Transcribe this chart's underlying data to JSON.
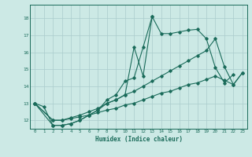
{
  "xlabel": "Humidex (Indice chaleur)",
  "bg_color": "#cce9e5",
  "grid_color": "#aacccc",
  "line_color": "#1a6b5a",
  "xlim": [
    -0.5,
    23.5
  ],
  "ylim": [
    11.5,
    18.8
  ],
  "yticks": [
    12,
    13,
    14,
    15,
    16,
    17,
    18
  ],
  "xticks": [
    0,
    1,
    2,
    3,
    4,
    5,
    6,
    7,
    8,
    9,
    10,
    11,
    12,
    13,
    14,
    15,
    16,
    17,
    18,
    19,
    20,
    21,
    22,
    23
  ],
  "series1_x": [
    0,
    1,
    2,
    3,
    4,
    5,
    6,
    7,
    8,
    9,
    10,
    11,
    12,
    13,
    14,
    15,
    16,
    17,
    18,
    19,
    20,
    21,
    22
  ],
  "series1_y": [
    13.0,
    12.8,
    11.7,
    11.7,
    11.8,
    12.0,
    12.3,
    12.6,
    13.0,
    13.2,
    13.5,
    16.3,
    14.6,
    18.1,
    17.1,
    17.1,
    17.2,
    17.3,
    17.35,
    16.8,
    15.1,
    14.2,
    14.7
  ],
  "series2_x": [
    0,
    2,
    3,
    4,
    5,
    6,
    7,
    8,
    9,
    10,
    11,
    12,
    13
  ],
  "series2_y": [
    13.0,
    11.7,
    11.7,
    11.8,
    12.0,
    12.3,
    12.6,
    13.2,
    13.5,
    14.3,
    14.5,
    16.3,
    18.1
  ],
  "series3_x": [
    0,
    2,
    3,
    4,
    5,
    6,
    7,
    8,
    9,
    10,
    11,
    12,
    13,
    14,
    15,
    16,
    17,
    18,
    19,
    20,
    21,
    22,
    23
  ],
  "series3_y": [
    13.0,
    12.0,
    12.0,
    12.15,
    12.3,
    12.5,
    12.7,
    13.0,
    13.2,
    13.5,
    13.7,
    14.0,
    14.3,
    14.6,
    14.9,
    15.2,
    15.5,
    15.8,
    16.1,
    16.8,
    15.15,
    14.1,
    14.8
  ],
  "series4_x": [
    0,
    2,
    3,
    4,
    5,
    6,
    7,
    8,
    9,
    10,
    11,
    12,
    13,
    14,
    15,
    16,
    17,
    18,
    19,
    20,
    21,
    22,
    23
  ],
  "series4_y": [
    13.0,
    12.0,
    12.0,
    12.1,
    12.2,
    12.3,
    12.45,
    12.6,
    12.7,
    12.9,
    13.0,
    13.2,
    13.4,
    13.6,
    13.7,
    13.9,
    14.1,
    14.2,
    14.4,
    14.6,
    14.35,
    14.1,
    14.8
  ]
}
